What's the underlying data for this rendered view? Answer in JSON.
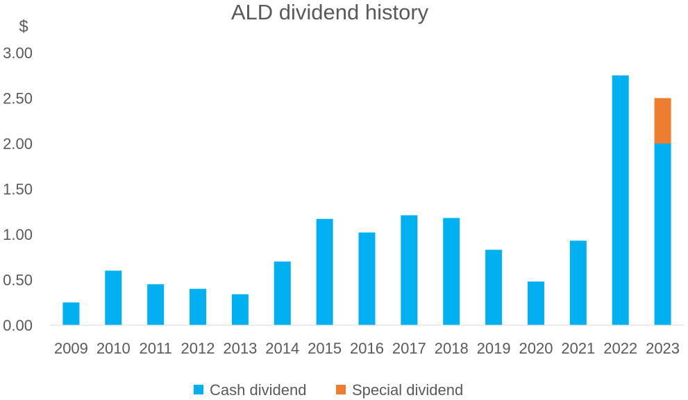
{
  "chart_data": {
    "type": "bar",
    "stacked": true,
    "title": "ALD dividend history",
    "ylabel": "$",
    "xlabel": "",
    "ylim": [
      0,
      3.0
    ],
    "yticks": [
      "0.00",
      "0.50",
      "1.00",
      "1.50",
      "2.00",
      "2.50",
      "3.00"
    ],
    "grid": false,
    "legend_position": "bottom",
    "categories": [
      "2009",
      "2010",
      "2011",
      "2012",
      "2013",
      "2014",
      "2015",
      "2016",
      "2017",
      "2018",
      "2019",
      "2020",
      "2021",
      "2022",
      "2023"
    ],
    "series": [
      {
        "name": "Cash dividend",
        "color": "#00b0f0",
        "values": [
          0.25,
          0.6,
          0.45,
          0.4,
          0.34,
          0.7,
          1.17,
          1.02,
          1.21,
          1.18,
          0.83,
          0.48,
          0.93,
          2.75,
          2.0
        ]
      },
      {
        "name": "Special dividend",
        "color": "#ed7d31",
        "values": [
          0,
          0,
          0,
          0,
          0,
          0,
          0,
          0,
          0,
          0,
          0,
          0,
          0,
          0,
          0.5
        ]
      }
    ]
  }
}
